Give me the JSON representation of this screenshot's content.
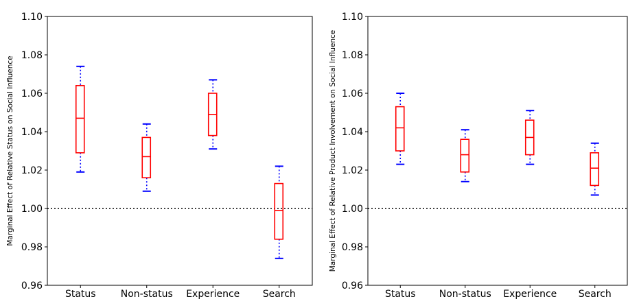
{
  "chart_data": [
    {
      "type": "box",
      "ylabel": "Marginal Effect of Relative Status on Social Influence",
      "xlabel": "",
      "title": "",
      "categories": [
        "Status",
        "Non-status",
        "Experience",
        "Search"
      ],
      "ylim": [
        0.96,
        1.1
      ],
      "yticks": [
        "0.96",
        "0.98",
        "1.00",
        "1.02",
        "1.04",
        "1.06",
        "1.08",
        "1.10"
      ],
      "reference_line": 1.0,
      "boxes": [
        {
          "whisker_low": 1.019,
          "q1": 1.029,
          "median": 1.047,
          "q3": 1.064,
          "whisker_high": 1.074
        },
        {
          "whisker_low": 1.009,
          "q1": 1.016,
          "median": 1.027,
          "q3": 1.037,
          "whisker_high": 1.044
        },
        {
          "whisker_low": 1.031,
          "q1": 1.038,
          "median": 1.049,
          "q3": 1.06,
          "whisker_high": 1.067
        },
        {
          "whisker_low": 0.974,
          "q1": 0.984,
          "median": 0.999,
          "q3": 1.013,
          "whisker_high": 1.022
        }
      ],
      "grid": false
    },
    {
      "type": "box",
      "ylabel": "Marginal Effect of Relative Product Involvement on Social Influence",
      "xlabel": "",
      "title": "",
      "categories": [
        "Status",
        "Non-status",
        "Experience",
        "Search"
      ],
      "ylim": [
        0.96,
        1.1
      ],
      "yticks": [
        "0.96",
        "0.98",
        "1.00",
        "1.02",
        "1.04",
        "1.06",
        "1.08",
        "1.10"
      ],
      "reference_line": 1.0,
      "boxes": [
        {
          "whisker_low": 1.023,
          "q1": 1.03,
          "median": 1.042,
          "q3": 1.053,
          "whisker_high": 1.06
        },
        {
          "whisker_low": 1.014,
          "q1": 1.019,
          "median": 1.028,
          "q3": 1.036,
          "whisker_high": 1.041
        },
        {
          "whisker_low": 1.023,
          "q1": 1.028,
          "median": 1.037,
          "q3": 1.046,
          "whisker_high": 1.051
        },
        {
          "whisker_low": 1.007,
          "q1": 1.012,
          "median": 1.021,
          "q3": 1.029,
          "whisker_high": 1.034
        }
      ],
      "grid": false
    }
  ],
  "colors": {
    "box": "#ff0000",
    "whisker": "#0000ff",
    "reference_line": "#000000",
    "axes": "#000000"
  }
}
